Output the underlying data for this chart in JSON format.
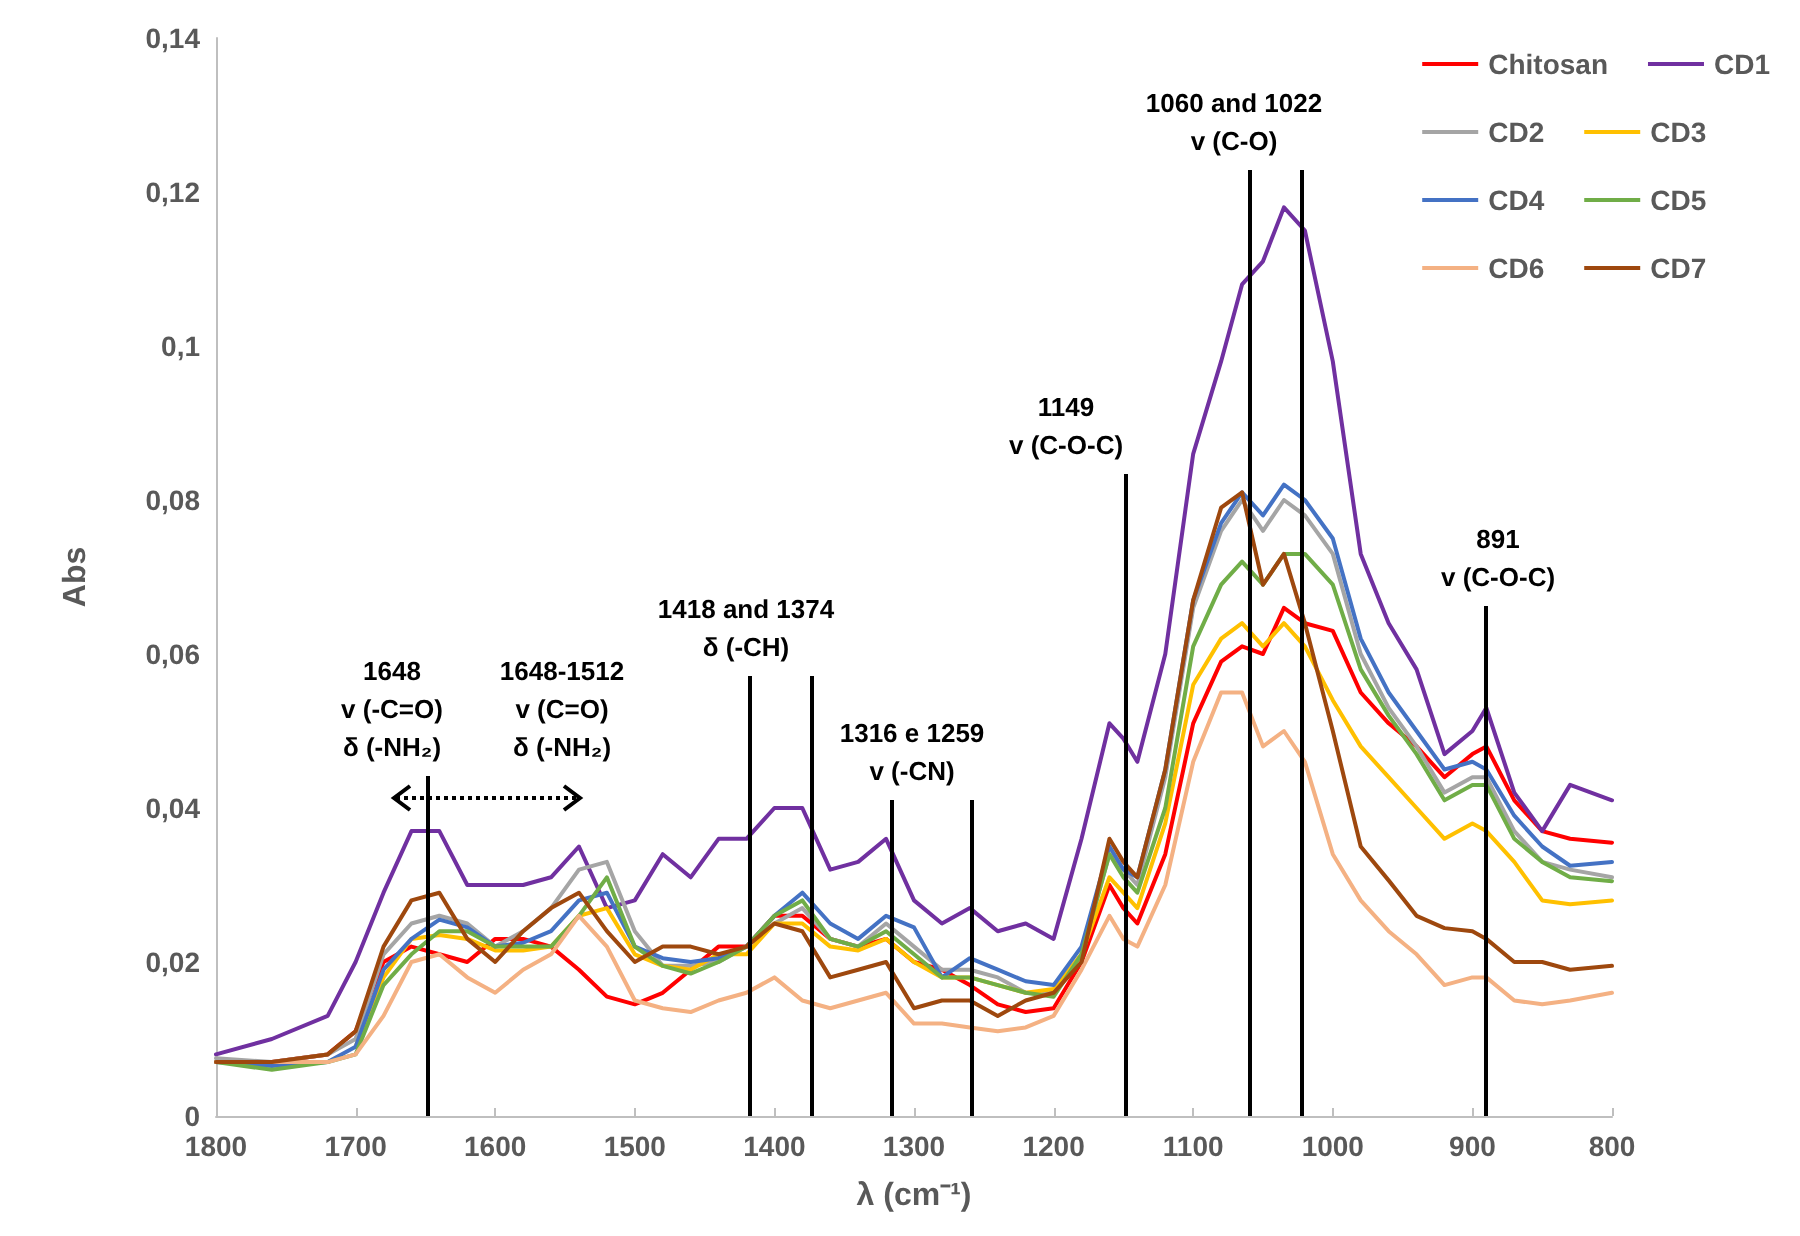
{
  "chart_data": {
    "type": "line",
    "xlabel": "λ (cm⁻¹)",
    "ylabel": "Abs",
    "x": [
      1800,
      1760,
      1720,
      1700,
      1680,
      1660,
      1640,
      1620,
      1600,
      1580,
      1560,
      1540,
      1520,
      1500,
      1480,
      1460,
      1440,
      1420,
      1400,
      1380,
      1360,
      1340,
      1320,
      1300,
      1280,
      1260,
      1240,
      1220,
      1200,
      1180,
      1160,
      1150,
      1140,
      1120,
      1100,
      1080,
      1065,
      1050,
      1035,
      1020,
      1000,
      980,
      960,
      940,
      920,
      900,
      890,
      870,
      850,
      830,
      800
    ],
    "series": [
      {
        "name": "Chitosan",
        "color": "#ff0000",
        "values": [
          0.007,
          0.007,
          0.008,
          0.011,
          0.02,
          0.022,
          0.021,
          0.02,
          0.023,
          0.023,
          0.022,
          0.019,
          0.0155,
          0.0145,
          0.016,
          0.019,
          0.022,
          0.022,
          0.026,
          0.026,
          0.023,
          0.022,
          0.023,
          0.02,
          0.019,
          0.017,
          0.0145,
          0.0135,
          0.014,
          0.02,
          0.03,
          0.027,
          0.025,
          0.034,
          0.051,
          0.059,
          0.061,
          0.06,
          0.066,
          0.064,
          0.063,
          0.055,
          0.051,
          0.048,
          0.044,
          0.047,
          0.048,
          0.041,
          0.037,
          0.036,
          0.0355
        ]
      },
      {
        "name": "CD1",
        "color": "#7030a0",
        "values": [
          0.008,
          0.01,
          0.013,
          0.02,
          0.029,
          0.037,
          0.037,
          0.03,
          0.03,
          0.03,
          0.031,
          0.035,
          0.027,
          0.028,
          0.034,
          0.031,
          0.036,
          0.036,
          0.04,
          0.04,
          0.032,
          0.033,
          0.036,
          0.028,
          0.025,
          0.027,
          0.024,
          0.025,
          0.023,
          0.036,
          0.051,
          0.049,
          0.046,
          0.06,
          0.086,
          0.098,
          0.108,
          0.111,
          0.118,
          0.115,
          0.098,
          0.073,
          0.064,
          0.058,
          0.047,
          0.05,
          0.053,
          0.042,
          0.037,
          0.043,
          0.041
        ]
      },
      {
        "name": "CD2",
        "color": "#a5a5a5",
        "values": [
          0.0075,
          0.007,
          0.008,
          0.01,
          0.021,
          0.025,
          0.026,
          0.025,
          0.022,
          0.024,
          0.027,
          0.032,
          0.033,
          0.024,
          0.0195,
          0.0195,
          0.02,
          0.022,
          0.025,
          0.027,
          0.023,
          0.022,
          0.025,
          0.022,
          0.019,
          0.019,
          0.018,
          0.016,
          0.016,
          0.021,
          0.034,
          0.032,
          0.03,
          0.044,
          0.066,
          0.076,
          0.08,
          0.076,
          0.08,
          0.078,
          0.073,
          0.06,
          0.053,
          0.048,
          0.042,
          0.044,
          0.044,
          0.037,
          0.033,
          0.032,
          0.031
        ]
      },
      {
        "name": "CD3",
        "color": "#ffc000",
        "values": [
          null,
          null,
          null,
          0.009,
          0.018,
          0.023,
          0.0235,
          0.023,
          0.0215,
          0.0215,
          0.022,
          0.026,
          0.027,
          0.021,
          0.0195,
          0.019,
          0.021,
          0.021,
          0.025,
          0.025,
          0.022,
          0.0215,
          0.023,
          0.02,
          0.018,
          0.018,
          0.017,
          0.016,
          0.0165,
          0.021,
          0.031,
          0.029,
          0.027,
          0.038,
          0.056,
          0.062,
          0.064,
          0.061,
          0.064,
          0.061,
          0.054,
          0.048,
          0.044,
          0.04,
          0.036,
          0.038,
          0.037,
          0.033,
          0.028,
          0.0275,
          0.028
        ]
      },
      {
        "name": "CD4",
        "color": "#4472c4",
        "values": [
          0.007,
          0.0065,
          0.007,
          0.009,
          0.019,
          0.023,
          0.0255,
          0.0245,
          0.022,
          0.0225,
          0.024,
          0.028,
          0.029,
          0.022,
          0.0205,
          0.02,
          0.0205,
          0.022,
          0.026,
          0.029,
          0.025,
          0.023,
          0.026,
          0.0245,
          0.018,
          0.0205,
          0.019,
          0.0175,
          0.017,
          0.022,
          0.035,
          0.032,
          0.031,
          0.045,
          0.067,
          0.077,
          0.081,
          0.078,
          0.082,
          0.08,
          0.075,
          0.062,
          0.055,
          0.05,
          0.045,
          0.046,
          0.045,
          0.039,
          0.035,
          0.0325,
          0.033
        ]
      },
      {
        "name": "CD5",
        "color": "#70ad47",
        "values": [
          0.007,
          0.006,
          0.007,
          0.008,
          0.017,
          0.021,
          0.024,
          0.024,
          0.022,
          0.022,
          0.022,
          0.026,
          0.031,
          0.022,
          0.0195,
          0.0185,
          0.02,
          0.022,
          0.026,
          0.028,
          0.023,
          0.022,
          0.024,
          0.021,
          0.018,
          0.018,
          0.017,
          0.016,
          0.0155,
          0.021,
          0.034,
          0.031,
          0.029,
          0.04,
          0.061,
          0.069,
          0.072,
          0.069,
          0.073,
          0.073,
          0.069,
          0.058,
          0.052,
          0.047,
          0.041,
          0.043,
          0.043,
          0.036,
          0.033,
          0.031,
          0.0305
        ]
      },
      {
        "name": "CD6",
        "color": "#f4b183",
        "values": [
          0.007,
          0.007,
          0.007,
          0.008,
          0.013,
          0.02,
          0.021,
          0.018,
          0.016,
          0.019,
          0.021,
          0.026,
          0.022,
          0.015,
          0.014,
          0.0135,
          0.015,
          0.016,
          0.018,
          0.015,
          0.014,
          0.015,
          0.016,
          0.012,
          0.012,
          0.0115,
          0.011,
          0.0115,
          0.013,
          0.019,
          0.026,
          0.023,
          0.022,
          0.03,
          0.046,
          0.055,
          0.055,
          0.048,
          0.05,
          0.046,
          0.034,
          0.028,
          0.024,
          0.021,
          0.017,
          0.018,
          0.018,
          0.015,
          0.0145,
          0.015,
          0.016
        ]
      },
      {
        "name": "CD7",
        "color": "#9e480e",
        "values": [
          0.007,
          0.007,
          0.008,
          0.011,
          0.022,
          0.028,
          0.029,
          0.023,
          0.02,
          0.024,
          0.027,
          0.029,
          0.024,
          0.02,
          0.022,
          0.022,
          0.021,
          0.022,
          0.025,
          0.024,
          0.018,
          0.019,
          0.02,
          0.014,
          0.015,
          0.015,
          0.013,
          0.015,
          0.016,
          0.02,
          0.036,
          0.033,
          0.031,
          0.045,
          0.067,
          0.079,
          0.081,
          0.069,
          0.073,
          0.064,
          0.05,
          0.035,
          0.0306,
          0.026,
          0.0244,
          0.024,
          0.023,
          0.02,
          0.02,
          0.019,
          0.0195
        ]
      }
    ],
    "xlim": [
      1800,
      800
    ],
    "xticks": [
      1800,
      1700,
      1600,
      1500,
      1400,
      1300,
      1200,
      1100,
      1000,
      900,
      800
    ],
    "ylim": [
      0,
      0.14
    ],
    "yticks": [
      0,
      {
        "value": 0.02,
        "label": "0,02"
      },
      {
        "value": 0.04,
        "label": "0,04"
      },
      {
        "value": 0.06,
        "label": "0,06"
      },
      {
        "value": 0.08,
        "label": "0,08"
      },
      {
        "value": 0.1,
        "label": "0,1"
      },
      {
        "value": 0.12,
        "label": "0,12"
      },
      {
        "value": 0.14,
        "label": "0,14"
      }
    ],
    "annotations": [
      "1648\nv (-C=O)\nδ (-NH₂)",
      "1648-1512\nv (C=O)\nδ (-NH₂)",
      "1418 and 1374\nδ (-CH)",
      "1316 e 1259\nv (-CN)",
      "1149\nv (C-O-C)",
      "1060 and 1022\nv (C-O)",
      "891\nv (C-O-C)"
    ],
    "ref_lines": [
      {
        "axis": "x",
        "value": 1648,
        "color": "#000000"
      },
      {
        "axis": "x",
        "value": 1418,
        "color": "#000000"
      },
      {
        "axis": "x",
        "value": 1374,
        "color": "#000000"
      },
      {
        "axis": "x",
        "value": 1316,
        "color": "#000000"
      },
      {
        "axis": "x",
        "value": 1259,
        "color": "#000000"
      },
      {
        "axis": "x",
        "value": 1149,
        "color": "#000000"
      },
      {
        "axis": "x",
        "value": 1060,
        "color": "#000000"
      },
      {
        "axis": "x",
        "value": 1022,
        "color": "#000000"
      },
      {
        "axis": "x",
        "value": 891,
        "color": "#000000"
      }
    ],
    "legend": "top right",
    "grid": false,
    "marker": "none",
    "line_style": "solid"
  }
}
